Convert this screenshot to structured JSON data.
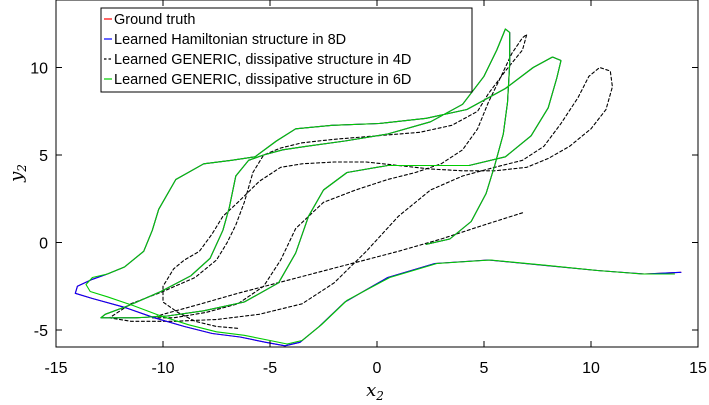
{
  "chart_data": {
    "type": "line",
    "title": "",
    "xlabel": "x",
    "xlabel_sub": "2",
    "ylabel": "y",
    "ylabel_sub": "2",
    "xlim": [
      -15,
      15
    ],
    "ylim": [
      -6,
      14
    ],
    "xticks": [
      -15,
      -10,
      -5,
      0,
      5,
      10,
      15
    ],
    "yticks": [
      -5,
      0,
      5,
      10
    ],
    "xtick_labels": [
      "-15",
      "-10",
      "-5",
      "0",
      "5",
      "10",
      "15"
    ],
    "ytick_labels": [
      "-5",
      "0",
      "5",
      "10"
    ],
    "grid": false,
    "legend_position": "top-left",
    "series": [
      {
        "name": "Ground truth",
        "color": "#ff0000",
        "dash": "solid",
        "x": [
          2.3,
          3.4,
          4.4,
          5.1,
          5.5,
          5.9,
          6.1,
          6.2,
          6.2,
          6.0,
          5.6,
          5.0,
          4.0,
          2.5,
          0.5,
          -1.5,
          -3.3,
          -4.4,
          -5.3,
          -6.0,
          -6.6,
          -6.9,
          -7.2,
          -7.8,
          -8.7,
          -10.1,
          -11.6,
          -12.7,
          -12.9,
          -12.5,
          -11.3,
          -9.8,
          -8.1,
          -6.2,
          -4.6,
          -3.8,
          -3.2,
          -2.5,
          -1.4,
          0.5,
          2.6,
          4.3,
          6.0,
          7.2,
          8.0,
          8.4,
          8.6,
          8.2,
          7.3,
          6.0,
          4.2,
          2.3,
          0.1,
          -2.1,
          -3.8,
          -4.7,
          -5.7,
          -6.8,
          -8.1,
          -9.4,
          -10.2,
          -10.5,
          -10.9,
          -11.8,
          -12.6,
          -13.3,
          -14.0,
          -14.1,
          -13.3,
          -11.8,
          -10.4,
          -9.0,
          -7.7,
          -6.4,
          -5.2,
          -4.3,
          -3.6,
          -2.7,
          -1.5,
          0.5,
          2.7,
          5.2,
          7.8,
          10.3,
          12.5,
          14.2
        ],
        "y": [
          -0.1,
          0.2,
          1.2,
          2.8,
          4.4,
          6.2,
          8.0,
          10.2,
          12.0,
          12.2,
          11.0,
          9.5,
          7.9,
          6.9,
          6.2,
          5.8,
          5.5,
          5.3,
          5.0,
          4.7,
          3.8,
          2.0,
          0.7,
          -0.9,
          -1.9,
          -2.8,
          -3.6,
          -4.1,
          -4.3,
          -4.3,
          -4.3,
          -4.2,
          -3.9,
          -3.4,
          -2.3,
          -0.6,
          1.5,
          3.0,
          4.0,
          4.4,
          4.4,
          4.4,
          4.9,
          6.1,
          7.7,
          9.4,
          10.4,
          10.6,
          10.0,
          8.8,
          7.6,
          7.1,
          6.8,
          6.7,
          6.5,
          5.8,
          4.9,
          4.7,
          4.5,
          3.6,
          1.9,
          0.7,
          -0.5,
          -1.4,
          -1.8,
          -2.1,
          -2.5,
          -2.9,
          -3.2,
          -3.7,
          -4.3,
          -4.8,
          -5.2,
          -5.4,
          -5.7,
          -5.9,
          -5.7,
          -4.8,
          -3.4,
          -2.0,
          -1.2,
          -1.0,
          -1.3,
          -1.6,
          -1.8,
          -1.7
        ]
      },
      {
        "name": "Learned Hamiltonian structure in 8D",
        "color": "#0000ff",
        "dash": "solid",
        "x": [
          2.3,
          3.4,
          4.4,
          5.1,
          5.5,
          5.9,
          6.1,
          6.2,
          6.2,
          6.0,
          5.6,
          5.0,
          4.0,
          2.5,
          0.5,
          -1.5,
          -3.3,
          -4.4,
          -5.3,
          -6.0,
          -6.6,
          -6.9,
          -7.2,
          -7.8,
          -8.7,
          -10.1,
          -11.6,
          -12.7,
          -12.9,
          -12.5,
          -11.3,
          -9.8,
          -8.1,
          -6.2,
          -4.6,
          -3.8,
          -3.2,
          -2.5,
          -1.4,
          0.5,
          2.6,
          4.3,
          6.0,
          7.2,
          8.0,
          8.4,
          8.6,
          8.2,
          7.3,
          6.0,
          4.2,
          2.3,
          0.1,
          -2.1,
          -3.8,
          -4.7,
          -5.7,
          -6.8,
          -8.1,
          -9.4,
          -10.2,
          -10.5,
          -10.9,
          -11.8,
          -12.6,
          -13.3,
          -14.0,
          -14.1,
          -13.3,
          -11.8,
          -10.4,
          -9.0,
          -7.7,
          -6.4,
          -5.2,
          -4.3,
          -3.6,
          -2.7,
          -1.5,
          0.5,
          2.7,
          5.2,
          7.8,
          10.3,
          12.5,
          14.2
        ],
        "y": [
          -0.1,
          0.2,
          1.2,
          2.8,
          4.4,
          6.2,
          8.0,
          10.2,
          12.0,
          12.2,
          11.0,
          9.5,
          7.9,
          6.9,
          6.2,
          5.8,
          5.5,
          5.3,
          5.0,
          4.7,
          3.8,
          2.0,
          0.7,
          -0.9,
          -1.9,
          -2.8,
          -3.6,
          -4.1,
          -4.3,
          -4.3,
          -4.3,
          -4.2,
          -3.9,
          -3.4,
          -2.3,
          -0.6,
          1.5,
          3.0,
          4.0,
          4.4,
          4.4,
          4.4,
          4.9,
          6.1,
          7.7,
          9.4,
          10.4,
          10.6,
          10.0,
          8.8,
          7.6,
          7.1,
          6.8,
          6.7,
          6.5,
          5.8,
          4.9,
          4.7,
          4.5,
          3.6,
          1.9,
          0.7,
          -0.5,
          -1.4,
          -1.8,
          -2.1,
          -2.5,
          -2.9,
          -3.2,
          -3.7,
          -4.3,
          -4.8,
          -5.2,
          -5.4,
          -5.7,
          -5.9,
          -5.7,
          -4.8,
          -3.4,
          -2.0,
          -1.2,
          -1.0,
          -1.3,
          -1.6,
          -1.8,
          -1.7
        ]
      },
      {
        "name": "Learned GENERIC, dissipative structure in 4D",
        "color": "#000000",
        "dash": "dashed",
        "x": [
          6.8,
          5.0,
          3.0,
          1.0,
          -1.5,
          -4.0,
          -6.5,
          -8.5,
          -10.0,
          -10.5,
          -9.5,
          -8.0,
          -6.5,
          -5.3,
          -4.5,
          -3.8,
          -2.5,
          -1.0,
          0.5,
          1.8,
          3.0,
          4.0,
          4.7,
          5.2,
          5.8,
          6.3,
          6.8,
          7.0,
          6.8,
          6.0,
          5.2,
          4.7,
          3.5,
          2.0,
          0.0,
          -2.0,
          -3.5,
          -4.5,
          -5.3,
          -5.8,
          -6.2,
          -6.6,
          -7.0,
          -7.5,
          -8.5,
          -10.0,
          -11.5,
          -12.5,
          -11.5,
          -9.5,
          -7.5,
          -5.5,
          -3.5,
          -2.0,
          -0.5,
          1.0,
          2.5,
          4.0,
          5.5,
          6.8,
          7.8,
          8.6,
          9.4,
          9.9,
          10.4,
          10.9,
          11.0,
          10.7,
          10.0,
          9.0,
          8.0,
          7.0,
          5.5,
          4.0,
          2.5,
          1.0,
          -0.5,
          -2.0,
          -3.5,
          -4.5,
          -5.5,
          -6.5,
          -7.2,
          -7.7,
          -8.3,
          -9.0,
          -9.5,
          -10.0,
          -10.0,
          -9.3,
          -8.5,
          -7.5,
          -6.5
        ],
        "y": [
          1.7,
          1.0,
          0.2,
          -0.5,
          -1.3,
          -2.1,
          -2.9,
          -3.6,
          -4.1,
          -4.3,
          -4.3,
          -4.0,
          -3.5,
          -2.5,
          -1.0,
          0.8,
          2.3,
          3.0,
          3.6,
          4.0,
          4.5,
          5.3,
          6.5,
          8.0,
          9.5,
          10.8,
          11.7,
          11.9,
          11.0,
          9.8,
          8.5,
          7.5,
          6.7,
          6.3,
          6.1,
          5.9,
          5.7,
          5.4,
          5.0,
          4.0,
          2.3,
          1.0,
          0.0,
          -1.0,
          -2.0,
          -2.8,
          -3.5,
          -4.3,
          -4.5,
          -4.5,
          -4.4,
          -4.1,
          -3.5,
          -2.3,
          -0.5,
          1.5,
          3.0,
          3.8,
          4.3,
          4.7,
          5.5,
          6.8,
          8.3,
          9.5,
          10.0,
          9.8,
          8.9,
          7.6,
          6.5,
          5.5,
          4.8,
          4.3,
          4.1,
          4.1,
          4.2,
          4.4,
          4.6,
          4.6,
          4.5,
          4.3,
          3.5,
          2.3,
          1.5,
          0.5,
          -0.5,
          -1.0,
          -1.5,
          -2.5,
          -3.4,
          -4.0,
          -4.5,
          -4.8,
          -4.9
        ]
      },
      {
        "name": "Learned GENERIC, dissipative structure in 6D",
        "color": "#00cc00",
        "dash": "solid",
        "x": [
          2.3,
          3.4,
          4.4,
          5.1,
          5.5,
          5.9,
          6.1,
          6.2,
          6.2,
          6.0,
          5.6,
          5.0,
          4.0,
          2.5,
          0.5,
          -1.5,
          -3.3,
          -4.4,
          -5.3,
          -6.0,
          -6.6,
          -6.9,
          -7.2,
          -7.8,
          -8.7,
          -10.1,
          -11.6,
          -12.7,
          -12.9,
          -12.5,
          -11.3,
          -9.8,
          -8.1,
          -6.2,
          -4.6,
          -3.8,
          -3.2,
          -2.5,
          -1.4,
          0.5,
          2.6,
          4.3,
          6.0,
          7.2,
          8.0,
          8.4,
          8.6,
          8.2,
          7.3,
          6.0,
          4.2,
          2.3,
          0.1,
          -2.1,
          -3.8,
          -4.7,
          -5.7,
          -6.8,
          -8.1,
          -9.4,
          -10.2,
          -10.5,
          -10.9,
          -11.8,
          -12.6,
          -13.3,
          -13.6,
          -13.4,
          -12.6,
          -11.4,
          -10.1,
          -8.8,
          -7.5,
          -6.2,
          -5.0,
          -4.2,
          -3.5,
          -2.6,
          -1.4,
          0.6,
          2.8,
          5.3,
          7.9,
          10.3,
          12.4,
          13.9
        ],
        "y": [
          -0.1,
          0.2,
          1.2,
          2.8,
          4.4,
          6.2,
          8.0,
          10.2,
          12.0,
          12.2,
          11.0,
          9.5,
          7.9,
          6.9,
          6.2,
          5.8,
          5.5,
          5.3,
          5.0,
          4.7,
          3.8,
          2.0,
          0.7,
          -0.9,
          -1.9,
          -2.8,
          -3.6,
          -4.1,
          -4.3,
          -4.3,
          -4.3,
          -4.2,
          -3.9,
          -3.4,
          -2.3,
          -0.6,
          1.5,
          3.0,
          4.0,
          4.4,
          4.4,
          4.4,
          4.9,
          6.1,
          7.7,
          9.4,
          10.4,
          10.6,
          10.0,
          8.8,
          7.6,
          7.1,
          6.8,
          6.7,
          6.5,
          5.8,
          4.9,
          4.7,
          4.5,
          3.6,
          1.9,
          0.7,
          -0.5,
          -1.4,
          -1.8,
          -2.0,
          -2.4,
          -2.8,
          -3.1,
          -3.6,
          -4.2,
          -4.7,
          -5.1,
          -5.3,
          -5.6,
          -5.8,
          -5.6,
          -4.7,
          -3.3,
          -2.0,
          -1.2,
          -1.0,
          -1.3,
          -1.6,
          -1.8,
          -1.8
        ]
      }
    ]
  }
}
